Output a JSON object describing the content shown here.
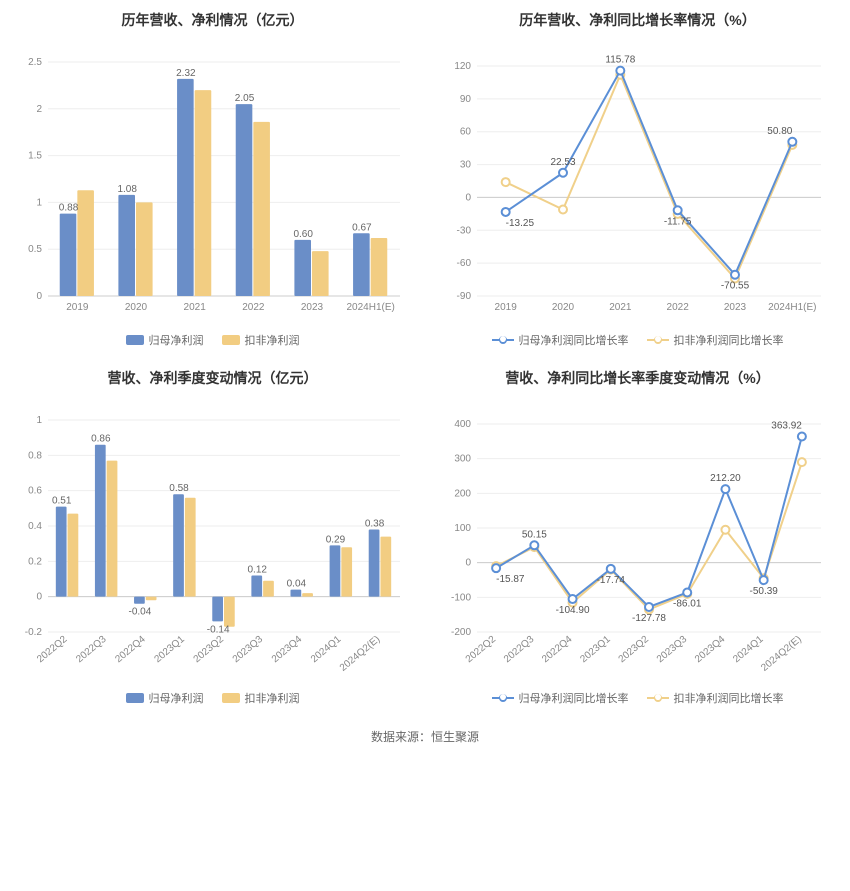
{
  "colors": {
    "series1": "#6a8ec8",
    "series2": "#f2cd82",
    "line1": "#5b8fd6",
    "line2": "#f0d08a",
    "grid": "#eeeeee",
    "axis": "#cccccc",
    "text": "#666666",
    "bg": "#ffffff"
  },
  "footer": "数据来源：恒生聚源",
  "chart1": {
    "type": "bar",
    "title": "历年营收、净利情况（亿元）",
    "categories": [
      "2019",
      "2020",
      "2021",
      "2022",
      "2023",
      "2024H1(E)"
    ],
    "series": [
      {
        "name": "归母净利润",
        "color": "#6a8ec8",
        "values": [
          0.88,
          1.08,
          2.32,
          2.05,
          0.6,
          0.67
        ]
      },
      {
        "name": "扣非净利润",
        "color": "#f2cd82",
        "values": [
          1.13,
          1.0,
          2.2,
          1.86,
          0.48,
          0.62
        ]
      }
    ],
    "primary_labels": [
      "0.88",
      "1.08",
      "2.32",
      "2.05",
      "0.60",
      "0.67"
    ],
    "ylim": [
      0,
      2.5
    ],
    "ytick_step": 0.5,
    "bar_group_width": 0.6,
    "label_fontsize": 10,
    "title_fontsize": 14
  },
  "chart2": {
    "type": "line",
    "title": "历年营收、净利同比增长率情况（%）",
    "categories": [
      "2019",
      "2020",
      "2021",
      "2022",
      "2023",
      "2024H1(E)"
    ],
    "series": [
      {
        "name": "归母净利润同比增长率",
        "color": "#5b8fd6",
        "values": [
          -13.25,
          22.53,
          115.78,
          -11.75,
          -70.55,
          50.8
        ]
      },
      {
        "name": "扣非净利润同比增长率",
        "color": "#f0d08a",
        "values": [
          14,
          -11,
          112,
          -15,
          -74,
          48
        ]
      }
    ],
    "point_labels": [
      {
        "idx": 0,
        "text": "-13.25"
      },
      {
        "idx": 1,
        "text": "22.53"
      },
      {
        "idx": 2,
        "text": "115.78"
      },
      {
        "idx": 3,
        "text": "-11.75"
      },
      {
        "idx": 4,
        "text": "-70.55"
      },
      {
        "idx": 5,
        "text": "50.80"
      }
    ],
    "ylim": [
      -90,
      120
    ],
    "ytick_step": 30,
    "marker_size": 4,
    "line_width": 2
  },
  "chart3": {
    "type": "bar",
    "title": "营收、净利季度变动情况（亿元）",
    "categories": [
      "2022Q2",
      "2022Q3",
      "2022Q4",
      "2023Q1",
      "2023Q2",
      "2023Q3",
      "2023Q4",
      "2024Q1",
      "2024Q2(E)"
    ],
    "series": [
      {
        "name": "归母净利润",
        "color": "#6a8ec8",
        "values": [
          0.51,
          0.86,
          -0.04,
          0.58,
          -0.14,
          0.12,
          0.04,
          0.29,
          0.38
        ]
      },
      {
        "name": "扣非净利润",
        "color": "#f2cd82",
        "values": [
          0.47,
          0.77,
          -0.02,
          0.56,
          -0.17,
          0.09,
          0.02,
          0.28,
          0.34
        ]
      }
    ],
    "primary_labels": [
      "0.51",
      "0.86",
      "-0.04",
      "0.58",
      "-0.14",
      "0.12",
      "0.04",
      "0.29",
      "0.38"
    ],
    "ylim": [
      -0.2,
      1.0
    ],
    "ytick_step": 0.2,
    "bar_group_width": 0.6,
    "rotate_x": true
  },
  "chart4": {
    "type": "line",
    "title": "营收、净利同比增长率季度变动情况（%）",
    "categories": [
      "2022Q2",
      "2022Q3",
      "2022Q4",
      "2023Q1",
      "2023Q2",
      "2023Q3",
      "2023Q4",
      "2024Q1",
      "2024Q2(E)"
    ],
    "series": [
      {
        "name": "归母净利润同比增长率",
        "color": "#5b8fd6",
        "values": [
          -15.87,
          50.15,
          -104.9,
          -17.74,
          -127.78,
          -86.01,
          212.2,
          -50.39,
          363.92
        ]
      },
      {
        "name": "扣非净利润同比增长率",
        "color": "#f0d08a",
        "values": [
          -10,
          45,
          -115,
          -20,
          -135,
          -90,
          95,
          -45,
          290
        ]
      }
    ],
    "point_labels": [
      {
        "idx": 0,
        "text": "-15.87"
      },
      {
        "idx": 1,
        "text": "50.15"
      },
      {
        "idx": 2,
        "text": "-104.90"
      },
      {
        "idx": 3,
        "text": "-17.74"
      },
      {
        "idx": 4,
        "text": "-127.78"
      },
      {
        "idx": 5,
        "text": "-86.01"
      },
      {
        "idx": 6,
        "text": "212.20"
      },
      {
        "idx": 7,
        "text": "-50.39"
      },
      {
        "idx": 8,
        "text": "363.92"
      }
    ],
    "ylim": [
      -200,
      400
    ],
    "ytick_step": 100,
    "marker_size": 4,
    "line_width": 2,
    "rotate_x": true
  },
  "legend_bar": [
    {
      "label": "归母净利润",
      "color": "#6a8ec8"
    },
    {
      "label": "扣非净利润",
      "color": "#f2cd82"
    }
  ],
  "legend_line": [
    {
      "label": "归母净利润同比增长率",
      "color": "#5b8fd6"
    },
    {
      "label": "扣非净利润同比增长率",
      "color": "#f0d08a"
    }
  ]
}
